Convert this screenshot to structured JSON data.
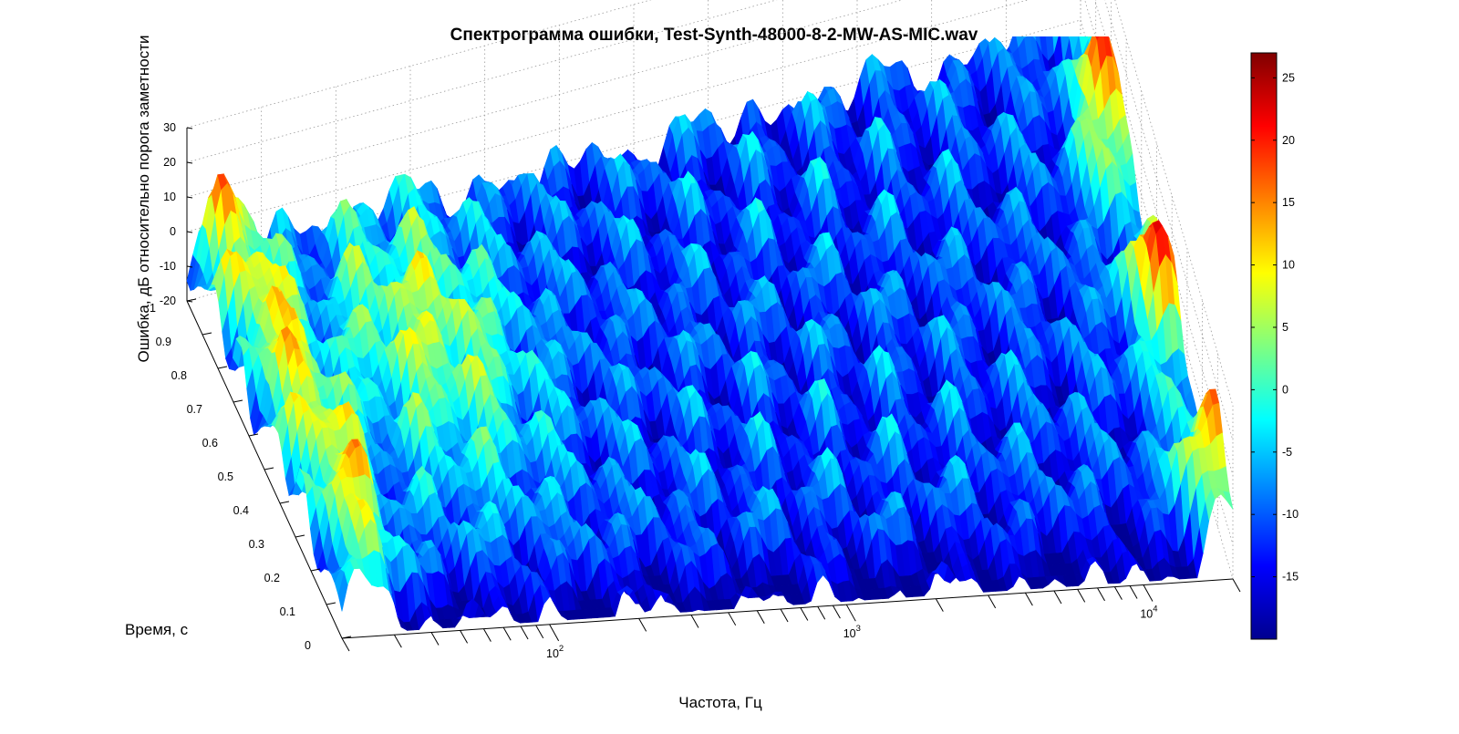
{
  "chart_data": {
    "type": "surface",
    "title": "Спектрограмма ошибки, Test-Synth-48000-8-2-MW-AS-MIC.wav",
    "xlabel": "Частота, Гц",
    "ylabel": "Время, с",
    "zlabel": "Ошибка, дБ относительно порога заметности",
    "x_scale": "log",
    "x_ticks": [
      {
        "value": 100,
        "base": "10",
        "exp": "2"
      },
      {
        "value": 1000,
        "base": "10",
        "exp": "3"
      },
      {
        "value": 10000,
        "base": "10",
        "exp": "4"
      }
    ],
    "x_range": [
      20,
      20000
    ],
    "y_ticks": [
      "0",
      "0.1",
      "0.2",
      "0.3",
      "0.4",
      "0.5",
      "0.6",
      "0.7",
      "0.8",
      "0.9",
      "1"
    ],
    "y_range": [
      0,
      1
    ],
    "z_ticks": [
      "30",
      "20",
      "10",
      "0",
      "-10",
      "-20"
    ],
    "z_range": [
      -20,
      30
    ],
    "grid": true,
    "colormap": "jet",
    "colorbar": {
      "ticks": [
        "25",
        "20",
        "15",
        "10",
        "5",
        "0",
        "-5",
        "-10",
        "-15"
      ],
      "range": [
        -20,
        27
      ]
    },
    "colors": {
      "jet_low": "#00008f",
      "jet_high": "#800000"
    }
  }
}
